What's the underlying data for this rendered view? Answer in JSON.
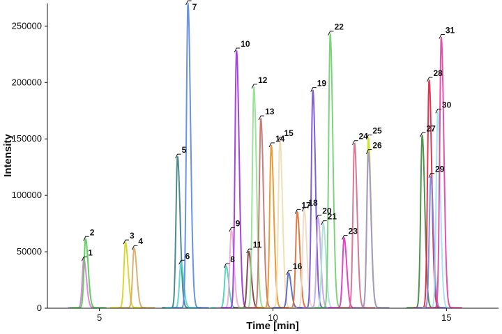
{
  "chart_data": {
    "type": "line",
    "title": "",
    "xlabel": "Time [min]",
    "ylabel": "Intensity",
    "xlim": [
      3.5,
      16.5
    ],
    "ylim": [
      0,
      270000
    ],
    "xticks": [
      5,
      10,
      15
    ],
    "yticks": [
      0,
      50000,
      100000,
      150000,
      200000,
      250000
    ],
    "grid": false,
    "legend": "none",
    "peaks": [
      {
        "label": "1",
        "rt": 4.55,
        "height": 43000,
        "color": "#e07ae0"
      },
      {
        "label": "2",
        "rt": 4.6,
        "height": 61000,
        "color": "#4ccd4c"
      },
      {
        "label": "3",
        "rt": 5.75,
        "height": 58000,
        "color": "#d4d41a"
      },
      {
        "label": "4",
        "rt": 6.0,
        "height": 53000,
        "color": "#d4a866"
      },
      {
        "label": "5",
        "rt": 7.25,
        "height": 134000,
        "color": "#3a7f7f"
      },
      {
        "label": "6",
        "rt": 7.35,
        "height": 40000,
        "color": "#4ad7cf"
      },
      {
        "label": "7",
        "rt": 7.55,
        "height": 270000,
        "color": "#5a87dd"
      },
      {
        "label": "8",
        "rt": 8.65,
        "height": 37000,
        "color": "#40d2b2"
      },
      {
        "label": "9",
        "rt": 8.8,
        "height": 69000,
        "color": "#f0a8d0"
      },
      {
        "label": "10",
        "rt": 8.95,
        "height": 228000,
        "color": "#9b30e0"
      },
      {
        "label": "11",
        "rt": 9.3,
        "height": 50000,
        "color": "#7a3a3a"
      },
      {
        "label": "12",
        "rt": 9.45,
        "height": 196000,
        "color": "#90e090"
      },
      {
        "label": "13",
        "rt": 9.65,
        "height": 168000,
        "color": "#c5706a"
      },
      {
        "label": "14",
        "rt": 9.95,
        "height": 144000,
        "color": "#e89020"
      },
      {
        "label": "15",
        "rt": 10.2,
        "height": 149000,
        "color": "#f0dcb0"
      },
      {
        "label": "16",
        "rt": 10.45,
        "height": 31000,
        "color": "#5060d0"
      },
      {
        "label": "17",
        "rt": 10.7,
        "height": 85000,
        "color": "#e06a30"
      },
      {
        "label": "18",
        "rt": 10.9,
        "height": 87000,
        "color": "#f0d6c0"
      },
      {
        "label": "19",
        "rt": 11.15,
        "height": 193000,
        "color": "#7050d0"
      },
      {
        "label": "20",
        "rt": 11.3,
        "height": 80000,
        "color": "#c8a0e8"
      },
      {
        "label": "21",
        "rt": 11.45,
        "height": 75000,
        "color": "#a8e0d8"
      },
      {
        "label": "22",
        "rt": 11.65,
        "height": 243000,
        "color": "#6cd06c"
      },
      {
        "label": "23",
        "rt": 12.05,
        "height": 62000,
        "color": "#e030c0"
      },
      {
        "label": "24",
        "rt": 12.35,
        "height": 146000,
        "color": "#d06a8a"
      },
      {
        "label": "25",
        "rt": 12.75,
        "height": 151000,
        "color": "#c8e020"
      },
      {
        "label": "26",
        "rt": 12.75,
        "height": 138000,
        "color": "#a090d8"
      },
      {
        "label": "27",
        "rt": 14.3,
        "height": 153000,
        "color": "#3a8a3a"
      },
      {
        "label": "28",
        "rt": 14.5,
        "height": 202000,
        "color": "#e02040"
      },
      {
        "label": "29",
        "rt": 14.55,
        "height": 117000,
        "color": "#8080e0"
      },
      {
        "label": "30",
        "rt": 14.75,
        "height": 174000,
        "color": "#a0e0f0"
      },
      {
        "label": "31",
        "rt": 14.85,
        "height": 240000,
        "color": "#e040a0"
      }
    ]
  }
}
